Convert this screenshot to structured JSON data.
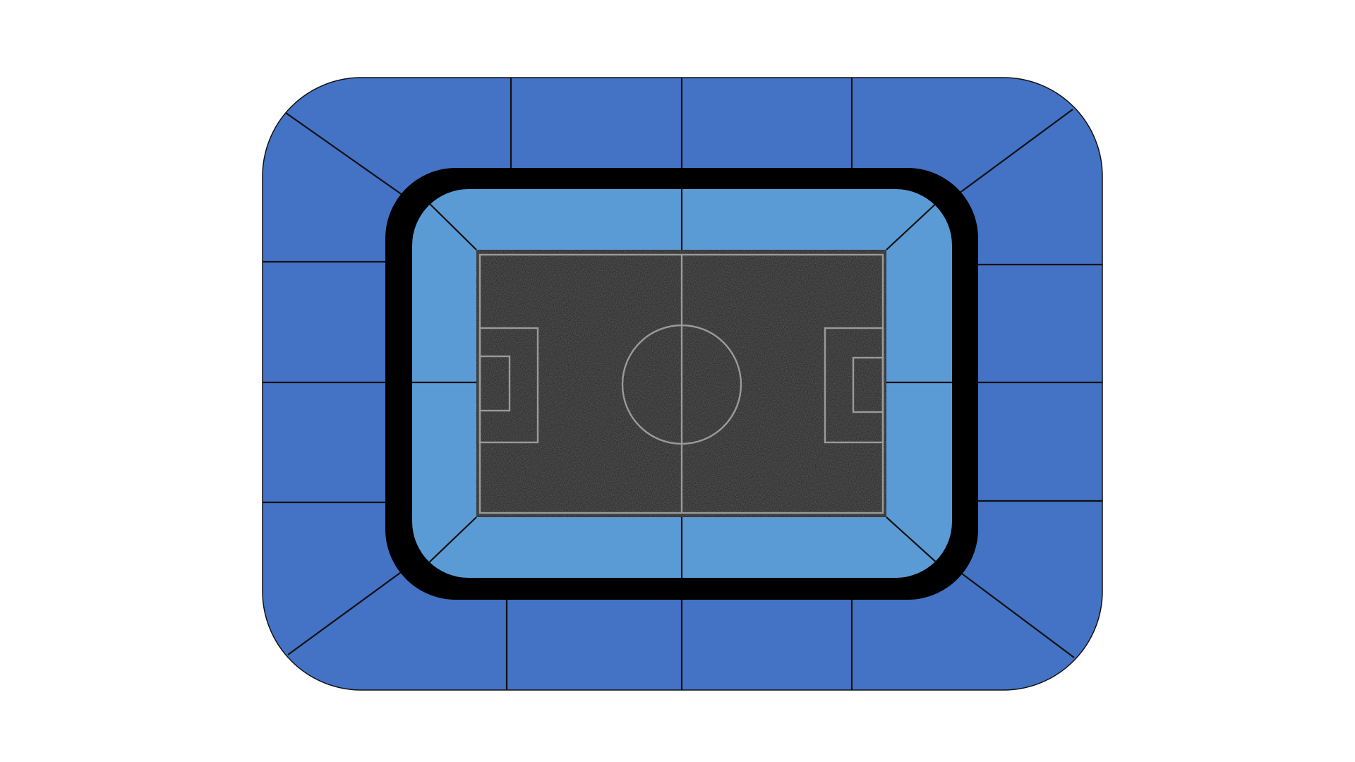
{
  "diagram": {
    "kind": "stadium-seating-map",
    "colors": {
      "background": "#ffffff",
      "outer_tier": "#4472c4",
      "inner_tier": "#5b9bd5",
      "concourse_ring": "#000000",
      "pitch_surface": "#1c1c1c",
      "pitch_markings": "#9a9a9a",
      "section_dividers": "#111111"
    },
    "outer_tier_sections": [
      "north-1",
      "north-2",
      "north-3",
      "north-4",
      "east-1",
      "east-2",
      "east-3",
      "east-4",
      "south-1",
      "south-2",
      "south-3",
      "south-4",
      "west-1",
      "west-2",
      "west-3",
      "west-4"
    ],
    "inner_tier_sections": [
      "north-left",
      "north-right",
      "east-upper",
      "east-lower",
      "south-left",
      "south-right",
      "west-upper",
      "west-lower"
    ],
    "pitch_elements": [
      "halfway-line",
      "center-circle",
      "left-penalty-box",
      "left-goal-box",
      "right-penalty-box",
      "right-goal-box"
    ]
  }
}
